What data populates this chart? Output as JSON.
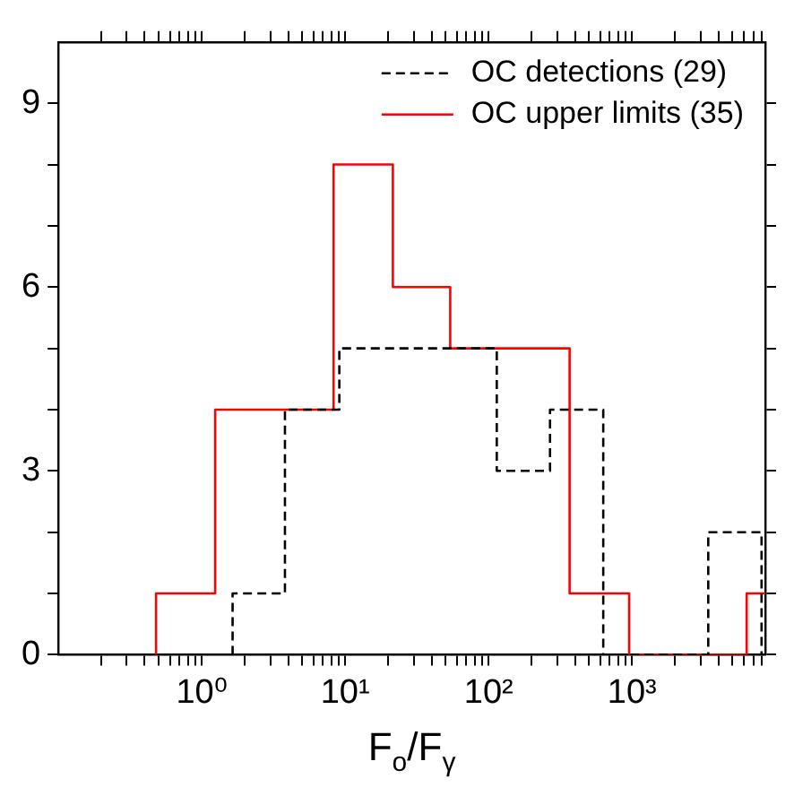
{
  "chart_data": {
    "type": "step",
    "xlabel": "F$_{o}$/F$_{γ}$",
    "log": "x",
    "grid": false,
    "legend": "top right",
    "xlim": [
      0.1,
      8500
    ],
    "xticks": [
      {
        "value": 0.2,
        "label": null
      },
      {
        "value": 0.3,
        "label": null
      },
      {
        "value": 0.4,
        "label": null
      },
      {
        "value": 0.5,
        "label": null
      },
      {
        "value": 0.6,
        "label": null
      },
      {
        "value": 0.7,
        "label": null
      },
      {
        "value": 0.8,
        "label": null
      },
      {
        "value": 0.9,
        "label": null
      },
      {
        "value": 1,
        "label": "10⁰"
      },
      {
        "value": 2,
        "label": null
      },
      {
        "value": 3,
        "label": null
      },
      {
        "value": 4,
        "label": null
      },
      {
        "value": 5,
        "label": null
      },
      {
        "value": 6,
        "label": null
      },
      {
        "value": 7,
        "label": null
      },
      {
        "value": 8,
        "label": null
      },
      {
        "value": 9,
        "label": null
      },
      {
        "value": 10,
        "label": "10¹"
      },
      {
        "value": 20,
        "label": null
      },
      {
        "value": 30,
        "label": null
      },
      {
        "value": 40,
        "label": null
      },
      {
        "value": 50,
        "label": null
      },
      {
        "value": 60,
        "label": null
      },
      {
        "value": 70,
        "label": null
      },
      {
        "value": 80,
        "label": null
      },
      {
        "value": 90,
        "label": null
      },
      {
        "value": 100,
        "label": "10²"
      },
      {
        "value": 200,
        "label": null
      },
      {
        "value": 300,
        "label": null
      },
      {
        "value": 400,
        "label": null
      },
      {
        "value": 500,
        "label": null
      },
      {
        "value": 600,
        "label": null
      },
      {
        "value": 700,
        "label": null
      },
      {
        "value": 800,
        "label": null
      },
      {
        "value": 900,
        "label": null
      },
      {
        "value": 1000,
        "label": "10³"
      },
      {
        "value": 2000,
        "label": null
      },
      {
        "value": 3000,
        "label": null
      },
      {
        "value": 4000,
        "label": null
      },
      {
        "value": 5000,
        "label": null
      },
      {
        "value": 6000,
        "label": null
      },
      {
        "value": 7000,
        "label": null
      },
      {
        "value": 8000,
        "label": null
      }
    ],
    "ylim": [
      0,
      10
    ],
    "yticks": [
      0,
      {
        "value": 1,
        "label": null
      },
      {
        "value": 2,
        "label": null
      },
      3,
      {
        "value": 4,
        "label": null
      },
      {
        "value": 5,
        "label": null
      },
      6,
      {
        "value": 7,
        "label": null
      },
      {
        "value": 8,
        "label": null
      },
      9
    ],
    "series": [
      {
        "name": "OC detections (29)",
        "color": "#000000",
        "line_style": "dashed",
        "x": [
          1.64,
          1.64,
          3.8,
          9.1,
          21,
          48,
          114,
          268,
          630,
          1480,
          3400,
          8000
        ],
        "values": [
          0,
          1,
          4,
          5,
          5,
          5,
          3,
          4,
          0,
          0,
          2,
          0
        ]
      },
      {
        "name": "OC upper limits (35)",
        "color": "#ff0000",
        "line_style": "solid",
        "x": [
          0.48,
          0.48,
          1.24,
          3.19,
          8.3,
          21.5,
          54,
          141,
          367,
          955,
          2450,
          6300,
          8500
        ],
        "values": [
          0,
          1,
          4,
          4,
          8,
          6,
          5,
          5,
          1,
          0,
          0,
          1,
          1
        ]
      }
    ]
  }
}
